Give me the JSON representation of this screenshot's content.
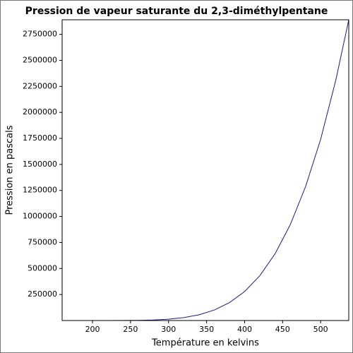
{
  "chart_data": {
    "type": "line",
    "title": "Pression de vapeur saturante du 2,3-diméthylpentane",
    "x_label": "Température en kelvins",
    "y_label": "Pression en pascals",
    "x": [
      160,
      180,
      200,
      220,
      240,
      260,
      280,
      300,
      320,
      340,
      360,
      380,
      400,
      420,
      440,
      460,
      480,
      500,
      520,
      537
    ],
    "series": [
      {
        "name": "Pression de vapeur saturante",
        "color": "#1a1a8c",
        "values": [
          0.3,
          3.8,
          29,
          153,
          613,
          1989,
          5454,
          13060,
          28060,
          55100,
          100400,
          171700,
          278000,
          430500,
          640500,
          920000,
          1283000,
          1740000,
          2311000,
          2890000
        ]
      }
    ],
    "xlim": [
      160,
      537
    ],
    "ylim": [
      0,
      2890000
    ],
    "xticks": [
      200,
      250,
      300,
      350,
      400,
      450,
      500
    ],
    "yticks": [
      250000,
      500000,
      750000,
      1000000,
      1250000,
      1500000,
      1750000,
      2000000,
      2250000,
      2500000,
      2750000
    ],
    "grid": false
  }
}
